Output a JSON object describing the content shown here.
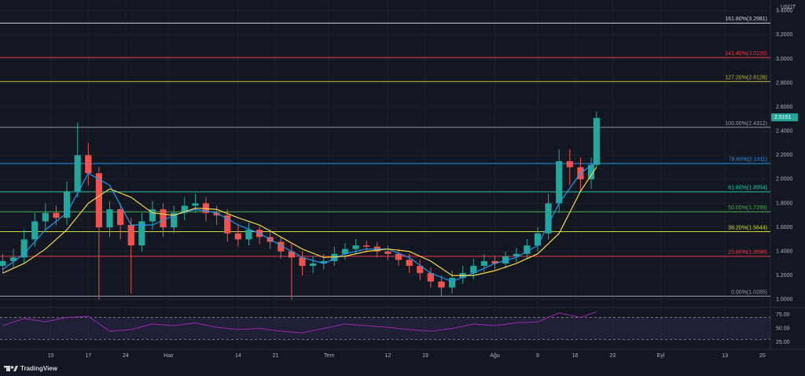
{
  "chart_data": {
    "type": "candlestick",
    "currency": "USDT",
    "brand": "TradingView",
    "grid": true,
    "up_color": "#26a69a",
    "down_color": "#ef5350",
    "last_price": 2.5151,
    "xlim": [
      -9.5,
      134.5
    ],
    "xticks": [
      {
        "value": 0,
        "label": "10"
      },
      {
        "value": 7,
        "label": "17"
      },
      {
        "value": 14,
        "label": "24"
      },
      {
        "value": 22,
        "label": "Haz"
      },
      {
        "value": 35,
        "label": "14"
      },
      {
        "value": 42,
        "label": "21"
      },
      {
        "value": 52,
        "label": "Tem"
      },
      {
        "value": 63,
        "label": "12"
      },
      {
        "value": 70,
        "label": "19"
      },
      {
        "value": 83,
        "label": "Ağu"
      },
      {
        "value": 91,
        "label": "9"
      },
      {
        "value": 98,
        "label": "16"
      },
      {
        "value": 105,
        "label": "23"
      },
      {
        "value": 114,
        "label": "Eyl"
      },
      {
        "value": 126,
        "label": "13"
      },
      {
        "value": 133,
        "label": "20"
      }
    ],
    "ylim": [
      0.94,
      3.49
    ],
    "yticks": [
      {
        "value": 1.0,
        "label": "1.0000"
      },
      {
        "value": 1.2,
        "label": "1.2000"
      },
      {
        "value": 1.4,
        "label": "1.4000"
      },
      {
        "value": 1.6,
        "label": "1.6000"
      },
      {
        "value": 1.8,
        "label": "1.8000"
      },
      {
        "value": 2.0,
        "label": "2.0000"
      },
      {
        "value": 2.2,
        "label": "2.2000"
      },
      {
        "value": 2.4,
        "label": "2.4000"
      },
      {
        "value": 2.6,
        "label": "2.6000"
      },
      {
        "value": 2.8,
        "label": "2.8000"
      },
      {
        "value": 3.0,
        "label": "3.0000"
      },
      {
        "value": 3.2,
        "label": "3.2000"
      },
      {
        "value": 3.4,
        "label": "3.4000"
      }
    ],
    "x": [
      -9,
      -7,
      -5,
      -3,
      -1,
      1,
      3,
      5,
      7,
      9,
      11,
      13,
      15,
      17,
      19,
      21,
      23,
      25,
      27,
      29,
      31,
      33,
      35,
      37,
      39,
      41,
      43,
      45,
      47,
      49,
      51,
      53,
      55,
      57,
      59,
      61,
      63,
      65,
      67,
      69,
      71,
      73,
      75,
      77,
      79,
      81,
      83,
      85,
      87,
      89,
      91,
      93,
      95,
      97,
      99,
      101,
      102
    ],
    "open": [
      1.28,
      1.32,
      1.35,
      1.5,
      1.65,
      1.72,
      1.68,
      1.9,
      2.2,
      2.05,
      1.6,
      1.75,
      1.62,
      1.45,
      1.65,
      1.75,
      1.6,
      1.72,
      1.78,
      1.8,
      1.72,
      1.7,
      1.55,
      1.5,
      1.58,
      1.52,
      1.48,
      1.4,
      1.35,
      1.28,
      1.3,
      1.32,
      1.38,
      1.42,
      1.45,
      1.44,
      1.4,
      1.38,
      1.33,
      1.28,
      1.22,
      1.15,
      1.1,
      1.18,
      1.22,
      1.28,
      1.32,
      1.3,
      1.36,
      1.38,
      1.45,
      1.55,
      1.8,
      2.15,
      2.1,
      2.0,
      2.12
    ],
    "high": [
      1.38,
      1.42,
      1.58,
      1.72,
      1.8,
      1.78,
      1.98,
      2.47,
      2.3,
      2.1,
      1.82,
      1.8,
      1.68,
      1.72,
      1.82,
      1.8,
      1.78,
      1.85,
      1.88,
      1.85,
      1.78,
      1.75,
      1.62,
      1.64,
      1.62,
      1.58,
      1.52,
      1.46,
      1.4,
      1.36,
      1.38,
      1.44,
      1.47,
      1.5,
      1.49,
      1.48,
      1.45,
      1.42,
      1.38,
      1.33,
      1.27,
      1.2,
      1.24,
      1.28,
      1.34,
      1.38,
      1.36,
      1.4,
      1.43,
      1.5,
      1.6,
      1.88,
      2.25,
      2.25,
      2.18,
      2.18,
      2.56
    ],
    "low": [
      1.22,
      1.26,
      1.3,
      1.44,
      1.58,
      1.62,
      1.62,
      1.85,
      1.95,
      1.0,
      1.52,
      1.5,
      1.05,
      1.4,
      1.58,
      1.52,
      1.55,
      1.66,
      1.72,
      1.65,
      1.62,
      1.48,
      1.44,
      1.45,
      1.46,
      1.42,
      1.34,
      1.0,
      1.2,
      1.22,
      1.25,
      1.28,
      1.33,
      1.38,
      1.39,
      1.35,
      1.33,
      1.28,
      1.22,
      1.16,
      1.1,
      1.03,
      1.05,
      1.13,
      1.17,
      1.23,
      1.25,
      1.26,
      1.31,
      1.34,
      1.4,
      1.5,
      1.72,
      1.95,
      1.9,
      1.92,
      2.1
    ],
    "close": [
      1.32,
      1.35,
      1.5,
      1.65,
      1.72,
      1.68,
      1.9,
      2.2,
      2.05,
      1.6,
      1.75,
      1.62,
      1.45,
      1.65,
      1.75,
      1.6,
      1.72,
      1.78,
      1.8,
      1.72,
      1.7,
      1.55,
      1.5,
      1.58,
      1.52,
      1.48,
      1.4,
      1.35,
      1.28,
      1.3,
      1.32,
      1.38,
      1.42,
      1.45,
      1.44,
      1.4,
      1.38,
      1.33,
      1.28,
      1.22,
      1.15,
      1.1,
      1.18,
      1.22,
      1.28,
      1.32,
      1.3,
      1.36,
      1.38,
      1.45,
      1.55,
      1.8,
      2.15,
      2.1,
      2.0,
      2.12,
      2.51
    ],
    "ma": [
      {
        "color": "#2196f3",
        "x": [
          -9,
          -5,
          -1,
          3,
          7,
          11,
          15,
          19,
          23,
          27,
          31,
          35,
          39,
          43,
          47,
          51,
          55,
          59,
          63,
          67,
          71,
          75,
          79,
          83,
          87,
          91,
          95,
          99,
          102
        ],
        "values": [
          1.25,
          1.38,
          1.58,
          1.72,
          2.05,
          1.95,
          1.62,
          1.62,
          1.7,
          1.75,
          1.72,
          1.62,
          1.55,
          1.45,
          1.35,
          1.3,
          1.38,
          1.42,
          1.42,
          1.35,
          1.22,
          1.15,
          1.22,
          1.3,
          1.35,
          1.45,
          1.8,
          2.05,
          2.15
        ]
      },
      {
        "color": "#f5d547",
        "x": [
          -9,
          -5,
          -1,
          3,
          7,
          11,
          15,
          19,
          23,
          27,
          31,
          35,
          39,
          43,
          47,
          51,
          55,
          59,
          63,
          67,
          71,
          75,
          79,
          83,
          87,
          91,
          95,
          99,
          102
        ],
        "values": [
          1.22,
          1.3,
          1.42,
          1.58,
          1.8,
          1.92,
          1.85,
          1.72,
          1.7,
          1.76,
          1.75,
          1.68,
          1.62,
          1.52,
          1.42,
          1.35,
          1.36,
          1.4,
          1.42,
          1.4,
          1.32,
          1.2,
          1.2,
          1.24,
          1.3,
          1.38,
          1.55,
          1.9,
          2.1
        ]
      }
    ],
    "fib_levels": [
      {
        "label": "161.80%(3.2981)",
        "value": 3.2981,
        "color": "#d1d4dc"
      },
      {
        "label": "141.40%(3.0120)",
        "value": 3.012,
        "color": "#f23645"
      },
      {
        "label": "127.20%(2.8128)",
        "value": 2.8128,
        "color": "#b9b93a"
      },
      {
        "label": "100.00%(2.4312)",
        "value": 2.4312,
        "color": "#9598a1"
      },
      {
        "label": "78.60%(2.1311)",
        "value": 2.1311,
        "color": "#2196f3"
      },
      {
        "label": "61.80%(1.8954)",
        "value": 1.8954,
        "color": "#26c6a0"
      },
      {
        "label": "50.00%(1.7299)",
        "value": 1.7299,
        "color": "#4caf50"
      },
      {
        "label": "38.20%(1.5644)",
        "value": 1.5644,
        "color": "#cddc39"
      },
      {
        "label": "23.60%(1.3596)",
        "value": 1.3596,
        "color": "#f23645"
      },
      {
        "label": "0.00%(1.0285)",
        "value": 1.0285,
        "color": "#9598a1"
      }
    ],
    "rsi": {
      "color": "#9c27b0",
      "ylim": [
        18,
        85
      ],
      "yticks": [
        {
          "value": 75,
          "label": "75.00"
        },
        {
          "value": 50,
          "label": "50.00"
        },
        {
          "value": 25,
          "label": "25.00"
        }
      ],
      "bands": [
        70,
        30
      ],
      "x": [
        -9,
        -5,
        -1,
        3,
        7,
        11,
        15,
        19,
        23,
        27,
        31,
        35,
        39,
        43,
        47,
        51,
        55,
        59,
        63,
        67,
        71,
        75,
        79,
        83,
        87,
        91,
        95,
        99,
        102
      ],
      "values": [
        55,
        68,
        62,
        70,
        72,
        45,
        48,
        58,
        55,
        60,
        52,
        48,
        50,
        45,
        42,
        50,
        58,
        55,
        52,
        48,
        45,
        50,
        58,
        55,
        60,
        62,
        78,
        70,
        80
      ]
    }
  }
}
